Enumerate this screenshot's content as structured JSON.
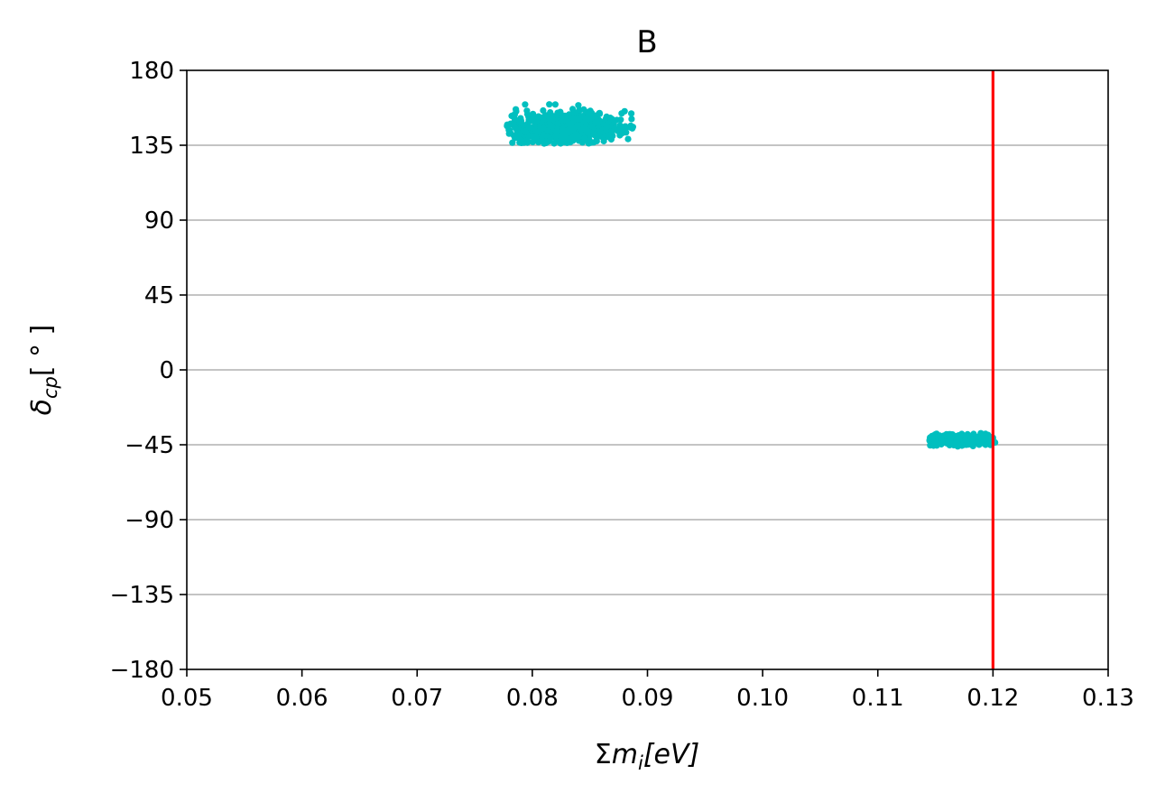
{
  "chart_data": {
    "type": "scatter",
    "title": "B",
    "xlabel": {
      "sigma": "Σ",
      "m": "m",
      "i": "i",
      "bracket": "[eV]"
    },
    "ylabel": {
      "delta": "δ",
      "sub": "cp",
      "bracket": "[ ° ]"
    },
    "xlim": [
      0.05,
      0.13
    ],
    "ylim": [
      -180,
      180
    ],
    "xticks": [
      0.05,
      0.06,
      0.07,
      0.08,
      0.09,
      0.1,
      0.11,
      0.12,
      0.13
    ],
    "xtick_labels": [
      "0.05",
      "0.06",
      "0.07",
      "0.08",
      "0.09",
      "0.10",
      "0.11",
      "0.12",
      "0.13"
    ],
    "yticks": [
      180,
      135,
      90,
      45,
      0,
      -45,
      -90,
      -135,
      -180
    ],
    "ytick_labels": [
      "180",
      "135",
      "90",
      "45",
      "0",
      "−45",
      "−90",
      "−135",
      "−180"
    ],
    "grid": "horizontal",
    "vline": {
      "x": 0.12,
      "color": "#ff0000"
    },
    "point_color": "#00bfbf",
    "clusters": [
      {
        "name": "",
        "x_center": 0.083,
        "y_center": 146,
        "x_spread": 0.0024,
        "y_spread": 4.5,
        "x_range": [
          0.0778,
          0.0888
        ],
        "y_range": [
          136,
          160
        ],
        "count": 650
      },
      {
        "name": "",
        "x_center": 0.1172,
        "y_center": -42,
        "x_spread": 0.0015,
        "y_spread": 1.6,
        "x_range": [
          0.1145,
          0.1202
        ],
        "y_range": [
          -46,
          -37
        ],
        "count": 450
      }
    ]
  }
}
